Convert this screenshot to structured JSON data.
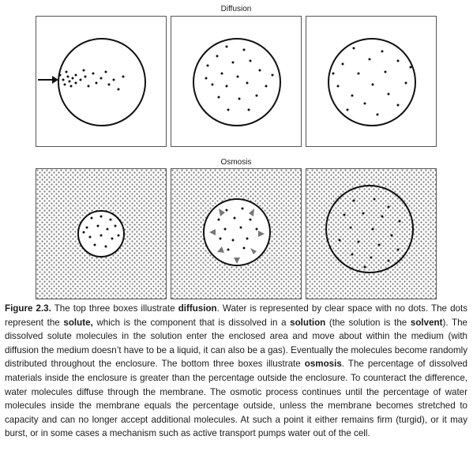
{
  "diffusion": {
    "title": "Diffusion"
  },
  "osmosis": {
    "title": "Osmosis"
  },
  "caption": {
    "label": "Figure 2.3.",
    "p1": " The top three boxes illustrate ",
    "t_diffusion": "diffusion",
    "p2": ". Water is represented by clear space with no dots. The dots represent the ",
    "t_solute": "solute,",
    "p3": " which is the component that is dissolved in a ",
    "t_solution": "solution",
    "p4": " (the solution is the ",
    "t_solvent": "solvent",
    "p5": "). The dissolved solute molecules in the solution enter the enclosed area and move about within the medium (with diffusion the medium doesn’t have to be a liquid, it can also be a gas). Eventually the molecules become randomly distributed throughout the enclosure. The bottom three boxes illustrate ",
    "t_osmosis": "osmosis",
    "p6": ". The percentage of dissolved materials inside the enclosure is greater than the percentage outside the enclosure. To counteract the difference, water molecules diffuse through the membrane. The osmotic process continues until the percentage of water molecules inside the membrane equals the percentage outside, unless the membrane becomes stretched to capacity and can no longer accept additional molecules. At such a point it either remains firm (turgid), or it may burst, or in some cases a mechanism such as active transport pumps water out of the cell."
  }
}
